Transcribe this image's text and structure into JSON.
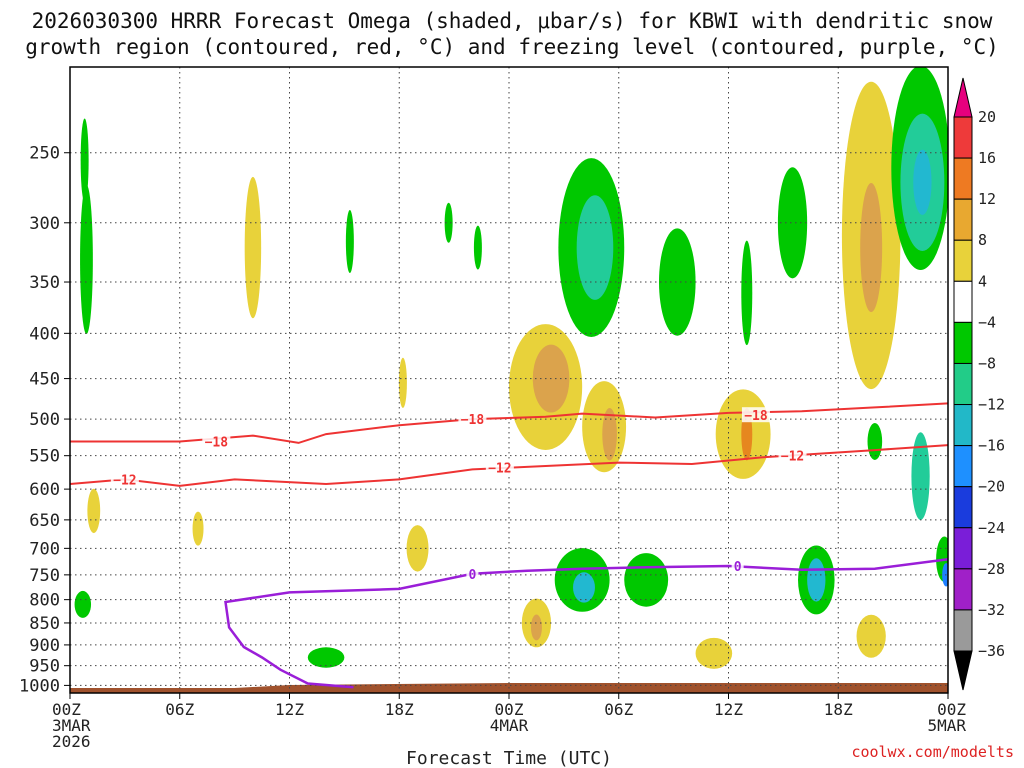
{
  "chart_data": {
    "type": "heatmap",
    "title_lines": [
      "2026030300 HRRR Forecast Omega (shaded, μbar/s) for KBWI with dendritic snow",
      "growth region (contoured, red, °C) and freezing level (contoured, purple, °C)"
    ],
    "xlabel": "Forecast Time (UTC)",
    "x_range_hours": [
      0,
      48
    ],
    "x_ticks": [
      {
        "hour": 0,
        "label": "00Z",
        "sub": [
          "3MAR",
          "2026"
        ]
      },
      {
        "hour": 6,
        "label": "06Z",
        "sub": []
      },
      {
        "hour": 12,
        "label": "12Z",
        "sub": []
      },
      {
        "hour": 18,
        "label": "18Z",
        "sub": []
      },
      {
        "hour": 24,
        "label": "00Z",
        "sub": [
          "4MAR"
        ]
      },
      {
        "hour": 30,
        "label": "06Z",
        "sub": []
      },
      {
        "hour": 36,
        "label": "12Z",
        "sub": []
      },
      {
        "hour": 42,
        "label": "18Z",
        "sub": []
      },
      {
        "hour": 48,
        "label": "00Z",
        "sub": [
          "5MAR"
        ]
      }
    ],
    "y_ticks_hpa": [
      250,
      300,
      350,
      400,
      450,
      500,
      550,
      600,
      650,
      700,
      750,
      800,
      850,
      900,
      950,
      1000
    ],
    "y_range_hpa": [
      200,
      1020
    ],
    "colorbar": {
      "levels": [
        "20",
        "16",
        "12",
        "8",
        "4",
        "−4",
        "−8",
        "−12",
        "−16",
        "−20",
        "−24",
        "−28",
        "−32",
        "−36"
      ],
      "colors": [
        "#e6007e",
        "#ee3a3a",
        "#ee7a22",
        "#e8a830",
        "#e8d23a",
        "#ffffff",
        "#00c800",
        "#22cc88",
        "#22b8c8",
        "#1e90ff",
        "#1a3cdd",
        "#7a1ed8",
        "#a020c8",
        "#9a9a9a",
        "#000000"
      ]
    },
    "shade_colors": {
      "yellow": "#e8d23a",
      "gold": "#dba34c",
      "orange": "#e6871f",
      "green": "#00c800",
      "teal": "#22cc99",
      "cyan": "#22b8d0",
      "blue": "#1e80ff",
      "ground": "#a0522d"
    },
    "omega_regions": [
      {
        "level": "green",
        "t": 0.9,
        "p": 330,
        "dt": 0.35,
        "dp": 120
      },
      {
        "level": "green",
        "t": 0.8,
        "p": 255,
        "dt": 0.2,
        "dp": 50
      },
      {
        "level": "green",
        "t": 0.7,
        "p": 810,
        "dt": 0.45,
        "dp": 40
      },
      {
        "level": "yellow",
        "t": 1.3,
        "p": 635,
        "dt": 0.35,
        "dp": 60
      },
      {
        "level": "yellow",
        "t": 10.0,
        "p": 320,
        "dt": 0.45,
        "dp": 110
      },
      {
        "level": "green",
        "t": 15.3,
        "p": 315,
        "dt": 0.2,
        "dp": 45
      },
      {
        "level": "yellow",
        "t": 7.0,
        "p": 665,
        "dt": 0.3,
        "dp": 45
      },
      {
        "level": "green",
        "t": 14.0,
        "p": 930,
        "dt": 1.0,
        "dp": 30
      },
      {
        "level": "yellow",
        "t": 18.2,
        "p": 455,
        "dt": 0.2,
        "dp": 50
      },
      {
        "level": "yellow",
        "t": 19.0,
        "p": 700,
        "dt": 0.6,
        "dp": 70
      },
      {
        "level": "green",
        "t": 20.7,
        "p": 300,
        "dt": 0.15,
        "dp": 25
      },
      {
        "level": "green",
        "t": 22.3,
        "p": 320,
        "dt": 0.2,
        "dp": 30
      },
      {
        "level": "yellow",
        "t": 26.0,
        "p": 460,
        "dt": 2.0,
        "dp": 140
      },
      {
        "level": "gold",
        "t": 26.3,
        "p": 450,
        "dt": 1.0,
        "dp": 70
      },
      {
        "level": "yellow",
        "t": 25.5,
        "p": 850,
        "dt": 0.8,
        "dp": 90
      },
      {
        "level": "gold",
        "t": 25.5,
        "p": 860,
        "dt": 0.3,
        "dp": 40
      },
      {
        "level": "green",
        "t": 28.5,
        "p": 320,
        "dt": 1.8,
        "dp": 140
      },
      {
        "level": "teal",
        "t": 28.7,
        "p": 320,
        "dt": 1.0,
        "dp": 80
      },
      {
        "level": "green",
        "t": 28.0,
        "p": 760,
        "dt": 1.5,
        "dp": 110
      },
      {
        "level": "cyan",
        "t": 28.1,
        "p": 775,
        "dt": 0.6,
        "dp": 45
      },
      {
        "level": "yellow",
        "t": 29.2,
        "p": 510,
        "dt": 1.2,
        "dp": 110
      },
      {
        "level": "gold",
        "t": 29.5,
        "p": 520,
        "dt": 0.4,
        "dp": 60
      },
      {
        "level": "green",
        "t": 31.5,
        "p": 760,
        "dt": 1.2,
        "dp": 90
      },
      {
        "level": "green",
        "t": 33.2,
        "p": 350,
        "dt": 1.0,
        "dp": 90
      },
      {
        "level": "yellow",
        "t": 36.8,
        "p": 520,
        "dt": 1.5,
        "dp": 110
      },
      {
        "level": "orange",
        "t": 37.0,
        "p": 520,
        "dt": 0.3,
        "dp": 60
      },
      {
        "level": "green",
        "t": 37.0,
        "p": 360,
        "dt": 0.3,
        "dp": 90
      },
      {
        "level": "yellow",
        "t": 35.2,
        "p": 920,
        "dt": 1.0,
        "dp": 55
      },
      {
        "level": "green",
        "t": 40.8,
        "p": 760,
        "dt": 1.0,
        "dp": 120
      },
      {
        "level": "cyan",
        "t": 40.8,
        "p": 760,
        "dt": 0.5,
        "dp": 70
      },
      {
        "level": "green",
        "t": 39.5,
        "p": 300,
        "dt": 0.8,
        "dp": 80
      },
      {
        "level": "yellow",
        "t": 43.8,
        "p": 310,
        "dt": 1.6,
        "dp": 230
      },
      {
        "level": "gold",
        "t": 43.8,
        "p": 320,
        "dt": 0.6,
        "dp": 100
      },
      {
        "level": "green",
        "t": 44.0,
        "p": 530,
        "dt": 0.4,
        "dp": 40
      },
      {
        "level": "yellow",
        "t": 43.8,
        "p": 880,
        "dt": 0.8,
        "dp": 80
      },
      {
        "level": "green",
        "t": 46.5,
        "p": 260,
        "dt": 1.6,
        "dp": 130
      },
      {
        "level": "teal",
        "t": 46.6,
        "p": 270,
        "dt": 1.2,
        "dp": 90
      },
      {
        "level": "cyan",
        "t": 46.6,
        "p": 270,
        "dt": 0.5,
        "dp": 40
      },
      {
        "level": "green",
        "t": 47.8,
        "p": 720,
        "dt": 0.45,
        "dp": 70
      },
      {
        "level": "teal",
        "t": 46.5,
        "p": 580,
        "dt": 0.5,
        "dp": 120
      },
      {
        "level": "blue",
        "t": 47.9,
        "p": 750,
        "dt": 0.2,
        "dp": 30
      }
    ],
    "isotherm_minus18": [
      [
        0,
        530
      ],
      [
        6,
        530
      ],
      [
        10,
        522
      ],
      [
        12.5,
        532
      ],
      [
        14,
        520
      ],
      [
        18,
        508
      ],
      [
        22,
        500
      ],
      [
        26,
        497
      ],
      [
        28,
        493
      ],
      [
        32,
        498
      ],
      [
        36,
        492
      ],
      [
        40,
        490
      ],
      [
        44,
        485
      ],
      [
        48,
        480
      ]
    ],
    "isotherm_minus12": [
      [
        0,
        592
      ],
      [
        3,
        585
      ],
      [
        6,
        595
      ],
      [
        9,
        585
      ],
      [
        14,
        592
      ],
      [
        18,
        585
      ],
      [
        22,
        570
      ],
      [
        26,
        565
      ],
      [
        30,
        560
      ],
      [
        34,
        562
      ],
      [
        38,
        552
      ],
      [
        44,
        542
      ],
      [
        48,
        535
      ]
    ],
    "freezing_level": [
      [
        15.5,
        1005
      ],
      [
        13,
        995
      ],
      [
        11.5,
        960
      ],
      [
        10.5,
        930
      ],
      [
        9.5,
        905
      ],
      [
        8.7,
        860
      ],
      [
        8.5,
        805
      ],
      [
        12,
        785
      ],
      [
        18,
        778
      ],
      [
        22,
        748
      ],
      [
        25,
        742
      ],
      [
        28,
        738
      ],
      [
        32,
        735
      ],
      [
        36,
        733
      ],
      [
        40,
        740
      ],
      [
        44,
        738
      ],
      [
        48,
        720
      ]
    ],
    "contour_labels": [
      {
        "text": "−18",
        "t": 8.0,
        "p": 530,
        "color": "#ee3333"
      },
      {
        "text": "−18",
        "t": 22.0,
        "p": 500,
        "color": "#ee3333"
      },
      {
        "text": "−18",
        "t": 37.5,
        "p": 495,
        "color": "#ee3333"
      },
      {
        "text": "−12",
        "t": 3.0,
        "p": 585,
        "color": "#ee3333"
      },
      {
        "text": "−12",
        "t": 23.5,
        "p": 567,
        "color": "#ee3333"
      },
      {
        "text": "−12",
        "t": 39.5,
        "p": 550,
        "color": "#ee3333"
      },
      {
        "text": "0",
        "t": 22.0,
        "p": 748,
        "color": "#9a1ed8"
      },
      {
        "text": "0",
        "t": 36.5,
        "p": 733,
        "color": "#9a1ed8"
      }
    ],
    "credit": "coolwx.com/modelts"
  }
}
